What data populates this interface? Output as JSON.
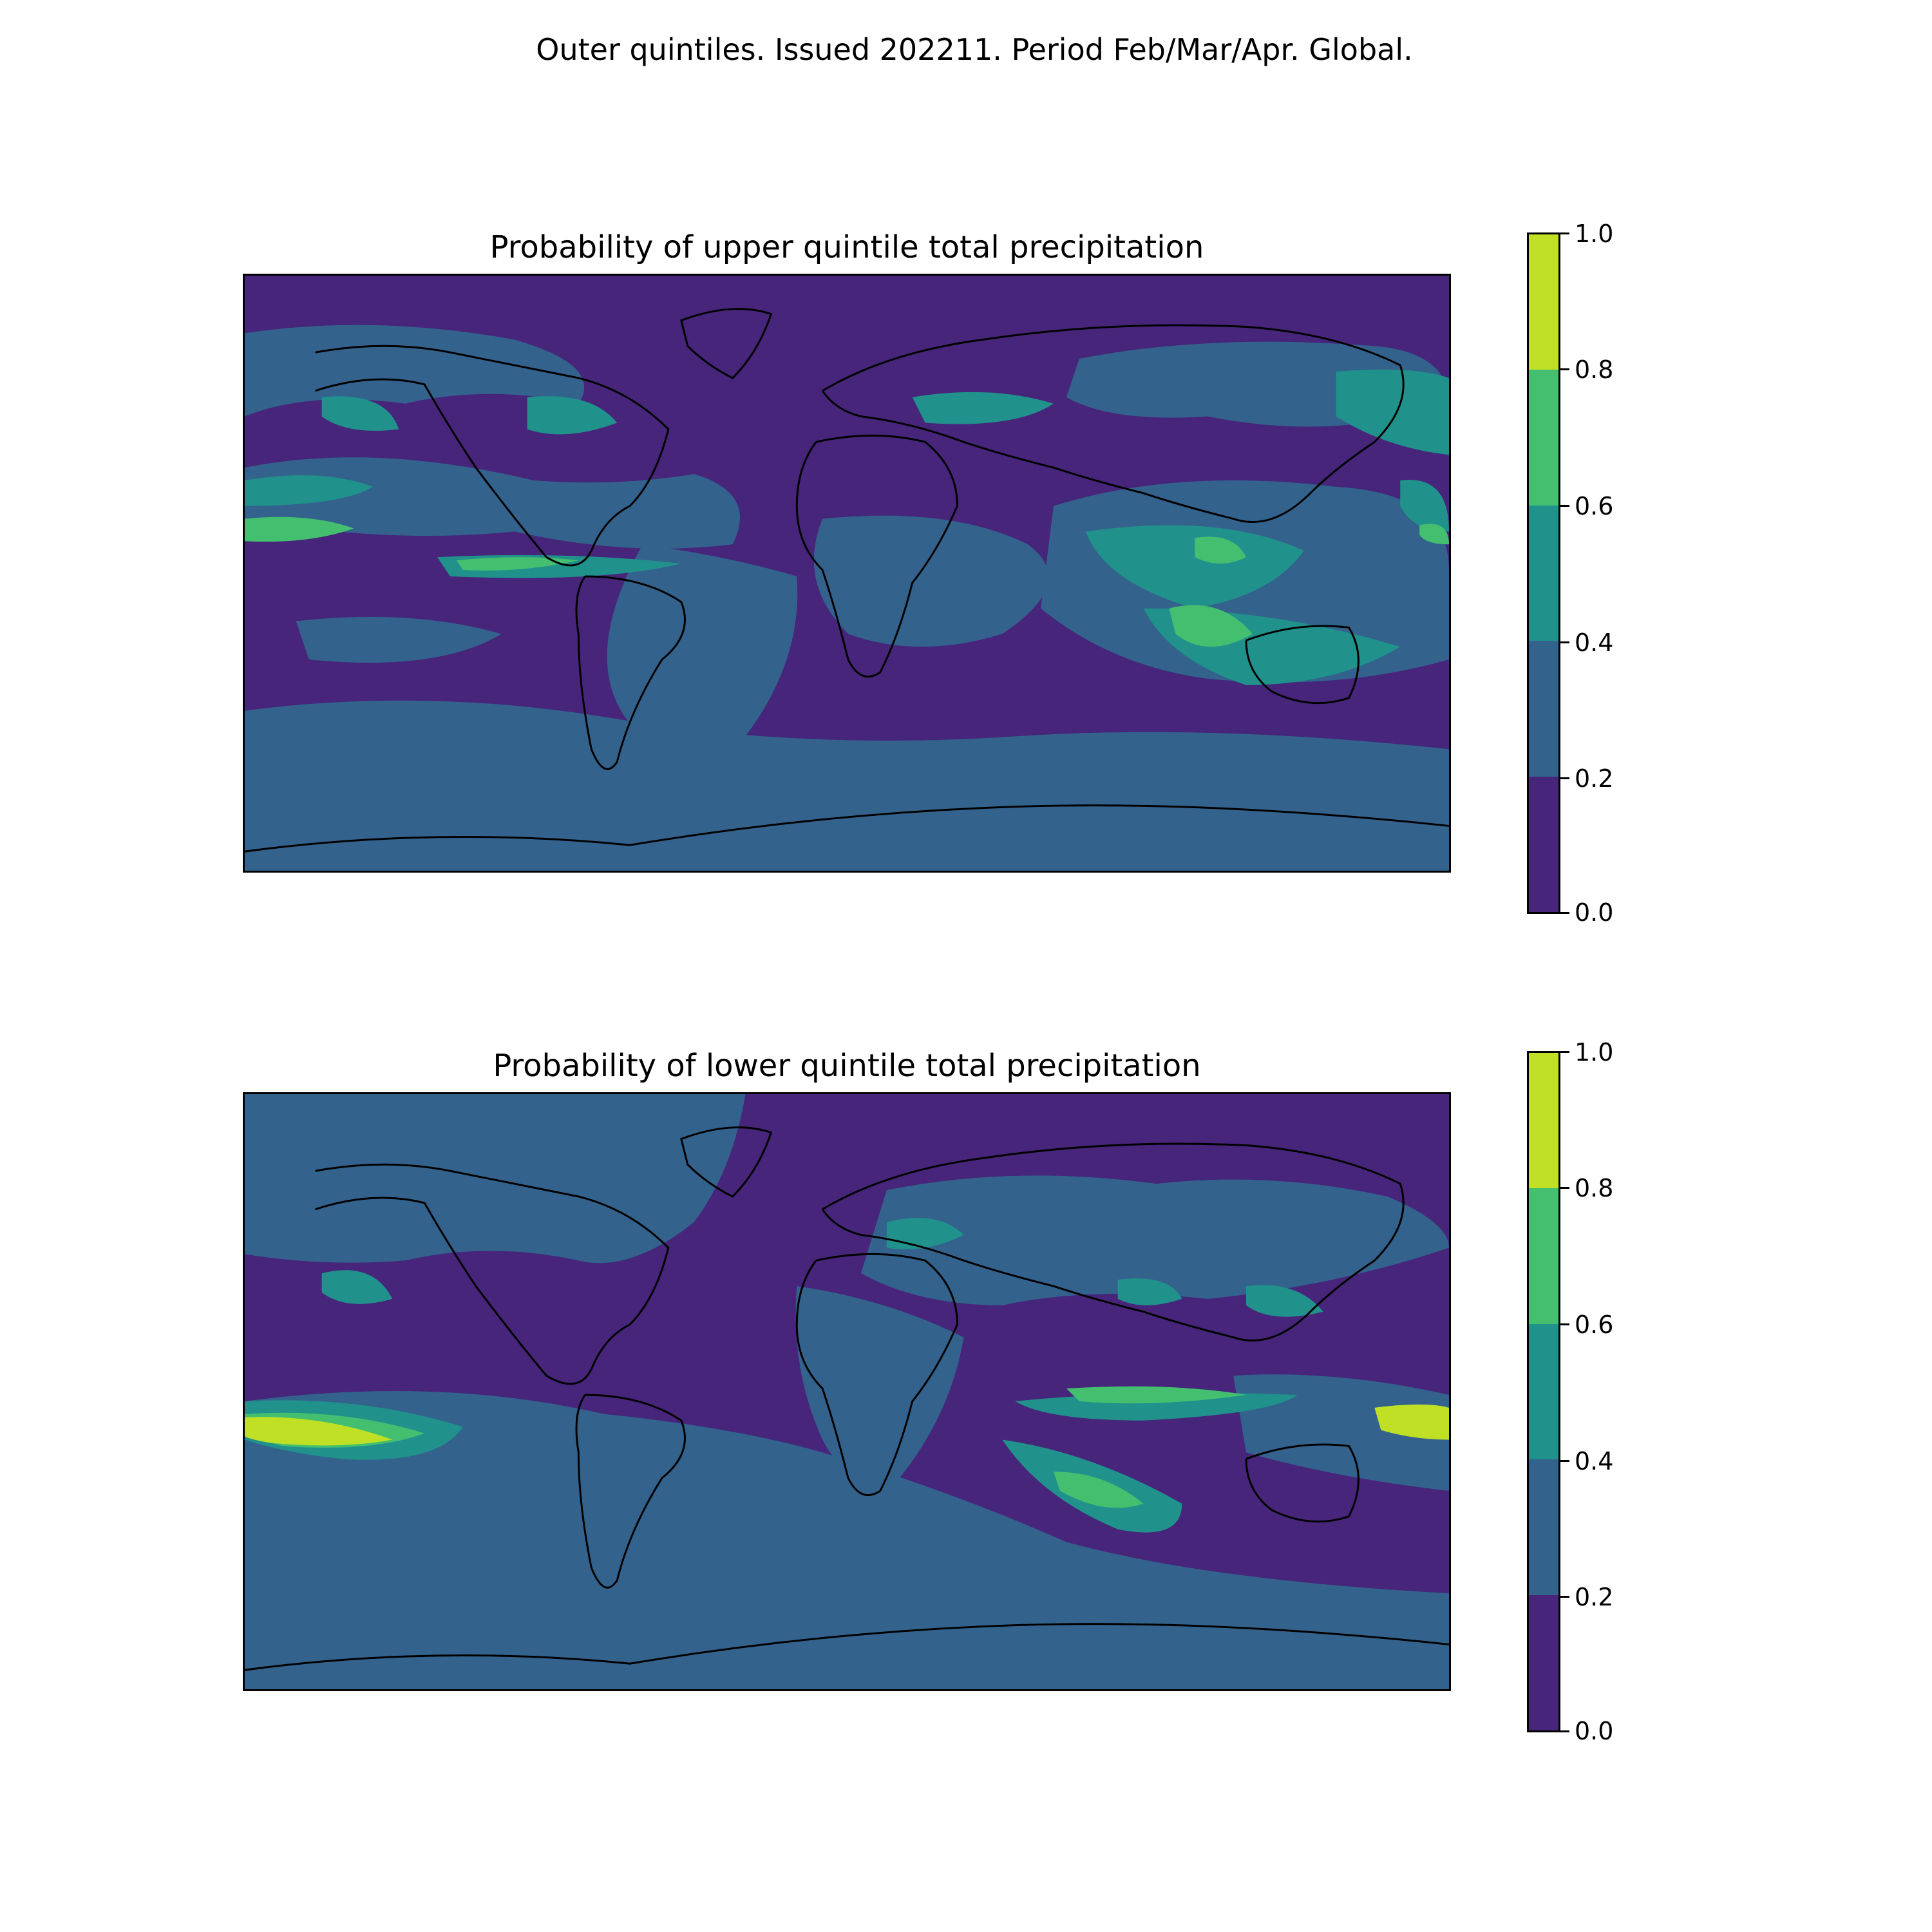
{
  "figure_title": "Outer quintiles. Issued 202211. Period Feb/Mar/Apr. Global.",
  "colormap": {
    "levels": [
      0.0,
      0.2,
      0.4,
      0.6,
      0.8,
      1.0
    ],
    "tick_labels": [
      "0.0",
      "0.2",
      "0.4",
      "0.6",
      "0.8",
      "1.0"
    ],
    "colors": [
      "#46257a",
      "#33628d",
      "#21918c",
      "#44bf70",
      "#bfe024"
    ]
  },
  "panels": [
    {
      "id": "upper",
      "title": "Probability of upper quintile total precipitation",
      "background_level": 0,
      "highlights": [
        {
          "region": "equatorial-east-pacific",
          "level": 1
        },
        {
          "region": "tropical-north-pacific",
          "level": 3
        },
        {
          "region": "central-america-atlantic",
          "level": 3
        },
        {
          "region": "amazon",
          "level": 2
        },
        {
          "region": "maritime-continent",
          "level": 3
        },
        {
          "region": "northwest-australia",
          "level": 3
        },
        {
          "region": "north-pacific",
          "level": 2
        },
        {
          "region": "northeast-canada",
          "level": 2
        },
        {
          "region": "siberia-north-asia",
          "level": 2
        },
        {
          "region": "southern-ocean",
          "level": 1
        }
      ]
    },
    {
      "id": "lower",
      "title": "Probability of lower quintile total precipitation",
      "background_level": 0,
      "highlights": [
        {
          "region": "north-america",
          "level": 1
        },
        {
          "region": "north-atlantic",
          "level": 2
        },
        {
          "region": "africa",
          "level": 1
        },
        {
          "region": "central-east-pacific",
          "level": 4
        },
        {
          "region": "western-pacific",
          "level": 4
        },
        {
          "region": "south-indian-ocean",
          "level": 2
        },
        {
          "region": "equatorial-indian-ocean",
          "level": 3
        },
        {
          "region": "south-atlantic",
          "level": 1
        },
        {
          "region": "antarctica",
          "level": 1
        }
      ]
    }
  ]
}
